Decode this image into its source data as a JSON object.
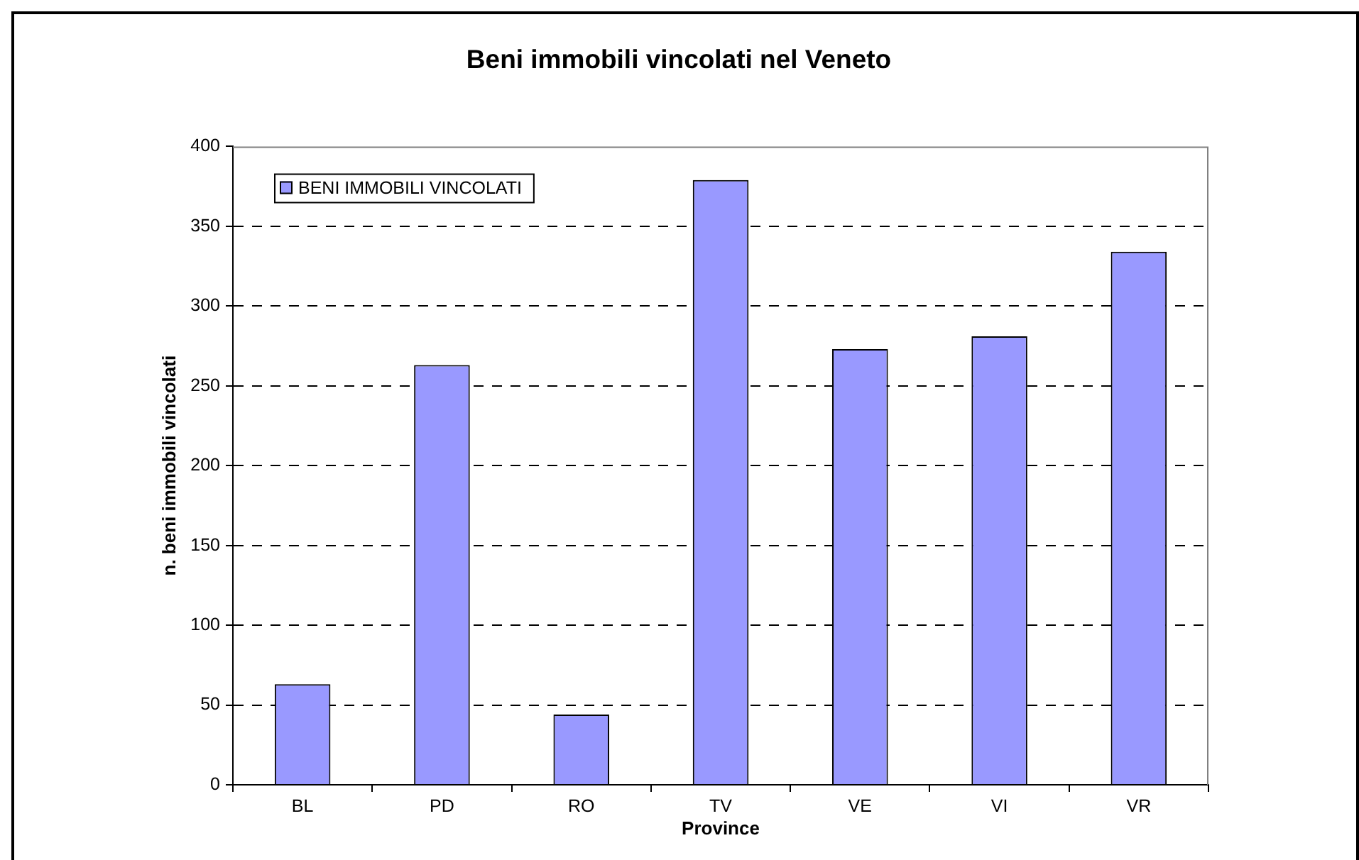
{
  "chart_data": {
    "type": "bar",
    "title": "Beni immobili vincolati nel Veneto",
    "xlabel": "Province",
    "ylabel": "n. beni immobili vincolati",
    "categories": [
      "BL",
      "PD",
      "RO",
      "TV",
      "VE",
      "VI",
      "VR"
    ],
    "series": [
      {
        "name": "BENI IMMOBILI VINCOLATI",
        "color": "#9999ff",
        "values": [
          63,
          263,
          44,
          379,
          273,
          281,
          334
        ]
      }
    ],
    "ylim": [
      0,
      400
    ],
    "yticks": [
      0,
      50,
      100,
      150,
      200,
      250,
      300,
      350,
      400
    ],
    "grid": "y",
    "legend": "top left"
  }
}
